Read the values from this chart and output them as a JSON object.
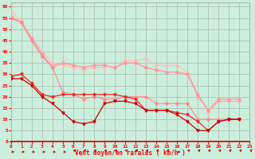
{
  "xlabel": "Vent moyen/en rafales ( km/h )",
  "bg_color": "#cceedd",
  "grid_color": "#aabbaa",
  "xlim": [
    0,
    23
  ],
  "ylim": [
    0,
    62
  ],
  "xticks": [
    0,
    1,
    2,
    3,
    4,
    5,
    6,
    7,
    8,
    9,
    10,
    11,
    12,
    13,
    14,
    15,
    16,
    17,
    18,
    19,
    20,
    21,
    22,
    23
  ],
  "yticks": [
    0,
    5,
    10,
    15,
    20,
    25,
    30,
    35,
    40,
    45,
    50,
    55,
    60
  ],
  "lines_pink": [
    [
      58,
      54,
      46,
      40,
      35,
      34,
      33,
      32,
      33,
      33,
      33,
      36,
      36,
      37,
      34,
      34,
      34,
      31,
      21,
      13,
      18,
      18,
      18
    ],
    [
      56,
      53,
      45,
      38,
      34,
      35,
      34,
      33,
      34,
      34,
      33,
      35,
      35,
      33,
      32,
      31,
      31,
      30,
      20,
      14,
      18,
      18,
      18
    ],
    [
      55,
      53,
      46,
      39,
      33,
      35,
      34,
      33,
      34,
      34,
      33,
      35,
      35,
      33,
      32,
      31,
      31,
      30,
      21,
      14,
      19,
      19,
      19
    ],
    [
      55,
      53,
      45,
      38,
      33,
      22,
      21,
      19,
      20,
      19,
      19,
      20,
      20,
      20,
      17,
      17,
      17,
      17,
      10,
      10,
      10,
      10,
      10
    ]
  ],
  "lines_red": [
    [
      29,
      30,
      26,
      21,
      20,
      21,
      21,
      21,
      21,
      21,
      21,
      20,
      19,
      14,
      14,
      14,
      13,
      12,
      9,
      5,
      9,
      10,
      10
    ],
    [
      28,
      28,
      25,
      20,
      17,
      13,
      9,
      8,
      9,
      17,
      18,
      18,
      17,
      14,
      14,
      14,
      12,
      9,
      5,
      5,
      9,
      10,
      10
    ]
  ],
  "color_pink1": "#ffbbbb",
  "color_pink2": "#ffaaaa",
  "color_pink3": "#ff9999",
  "color_pink4": "#ff8888",
  "color_red1": "#ee2222",
  "color_red2": "#cc0000",
  "arrow_color": "#cc0000",
  "arrow_angles": [
    0,
    0,
    0,
    0,
    0,
    0,
    45,
    45,
    45,
    45,
    45,
    45,
    45,
    45,
    45,
    45,
    0,
    45,
    45,
    45,
    45,
    45,
    45,
    45
  ]
}
